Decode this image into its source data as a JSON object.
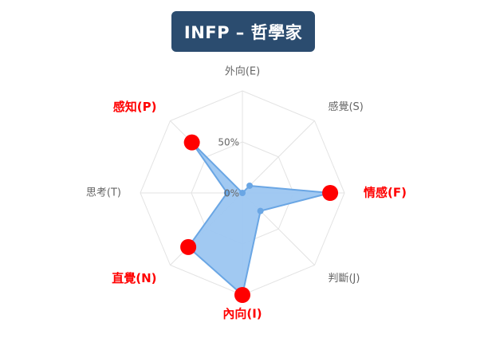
{
  "title": "INFP – 哲學家",
  "colors": {
    "title_bg": "#2b4c6f",
    "grid": "#e3e3e3",
    "fill": "#9cc6f1",
    "stroke": "#6aa6e4",
    "highlight_point": "#ff0000",
    "highlight_label": "#ff0000",
    "normal_label": "#666666",
    "tick_label": "#666666"
  },
  "chart_data": {
    "type": "radar",
    "scale": {
      "min": 0,
      "max": 100,
      "ticks": [
        "0%",
        "50%"
      ]
    },
    "axes": [
      {
        "label": "外向(E)",
        "value": 0,
        "highlight": false
      },
      {
        "label": "感覺(S)",
        "value": 10,
        "highlight": false
      },
      {
        "label": "情感(F)",
        "value": 86,
        "highlight": true
      },
      {
        "label": "判斷(J)",
        "value": 25,
        "highlight": false
      },
      {
        "label": "內向(I)",
        "value": 100,
        "highlight": true
      },
      {
        "label": "直覺(N)",
        "value": 75,
        "highlight": true
      },
      {
        "label": "思考(T)",
        "value": 15,
        "highlight": false
      },
      {
        "label": "感知(P)",
        "value": 70,
        "highlight": true
      }
    ]
  }
}
